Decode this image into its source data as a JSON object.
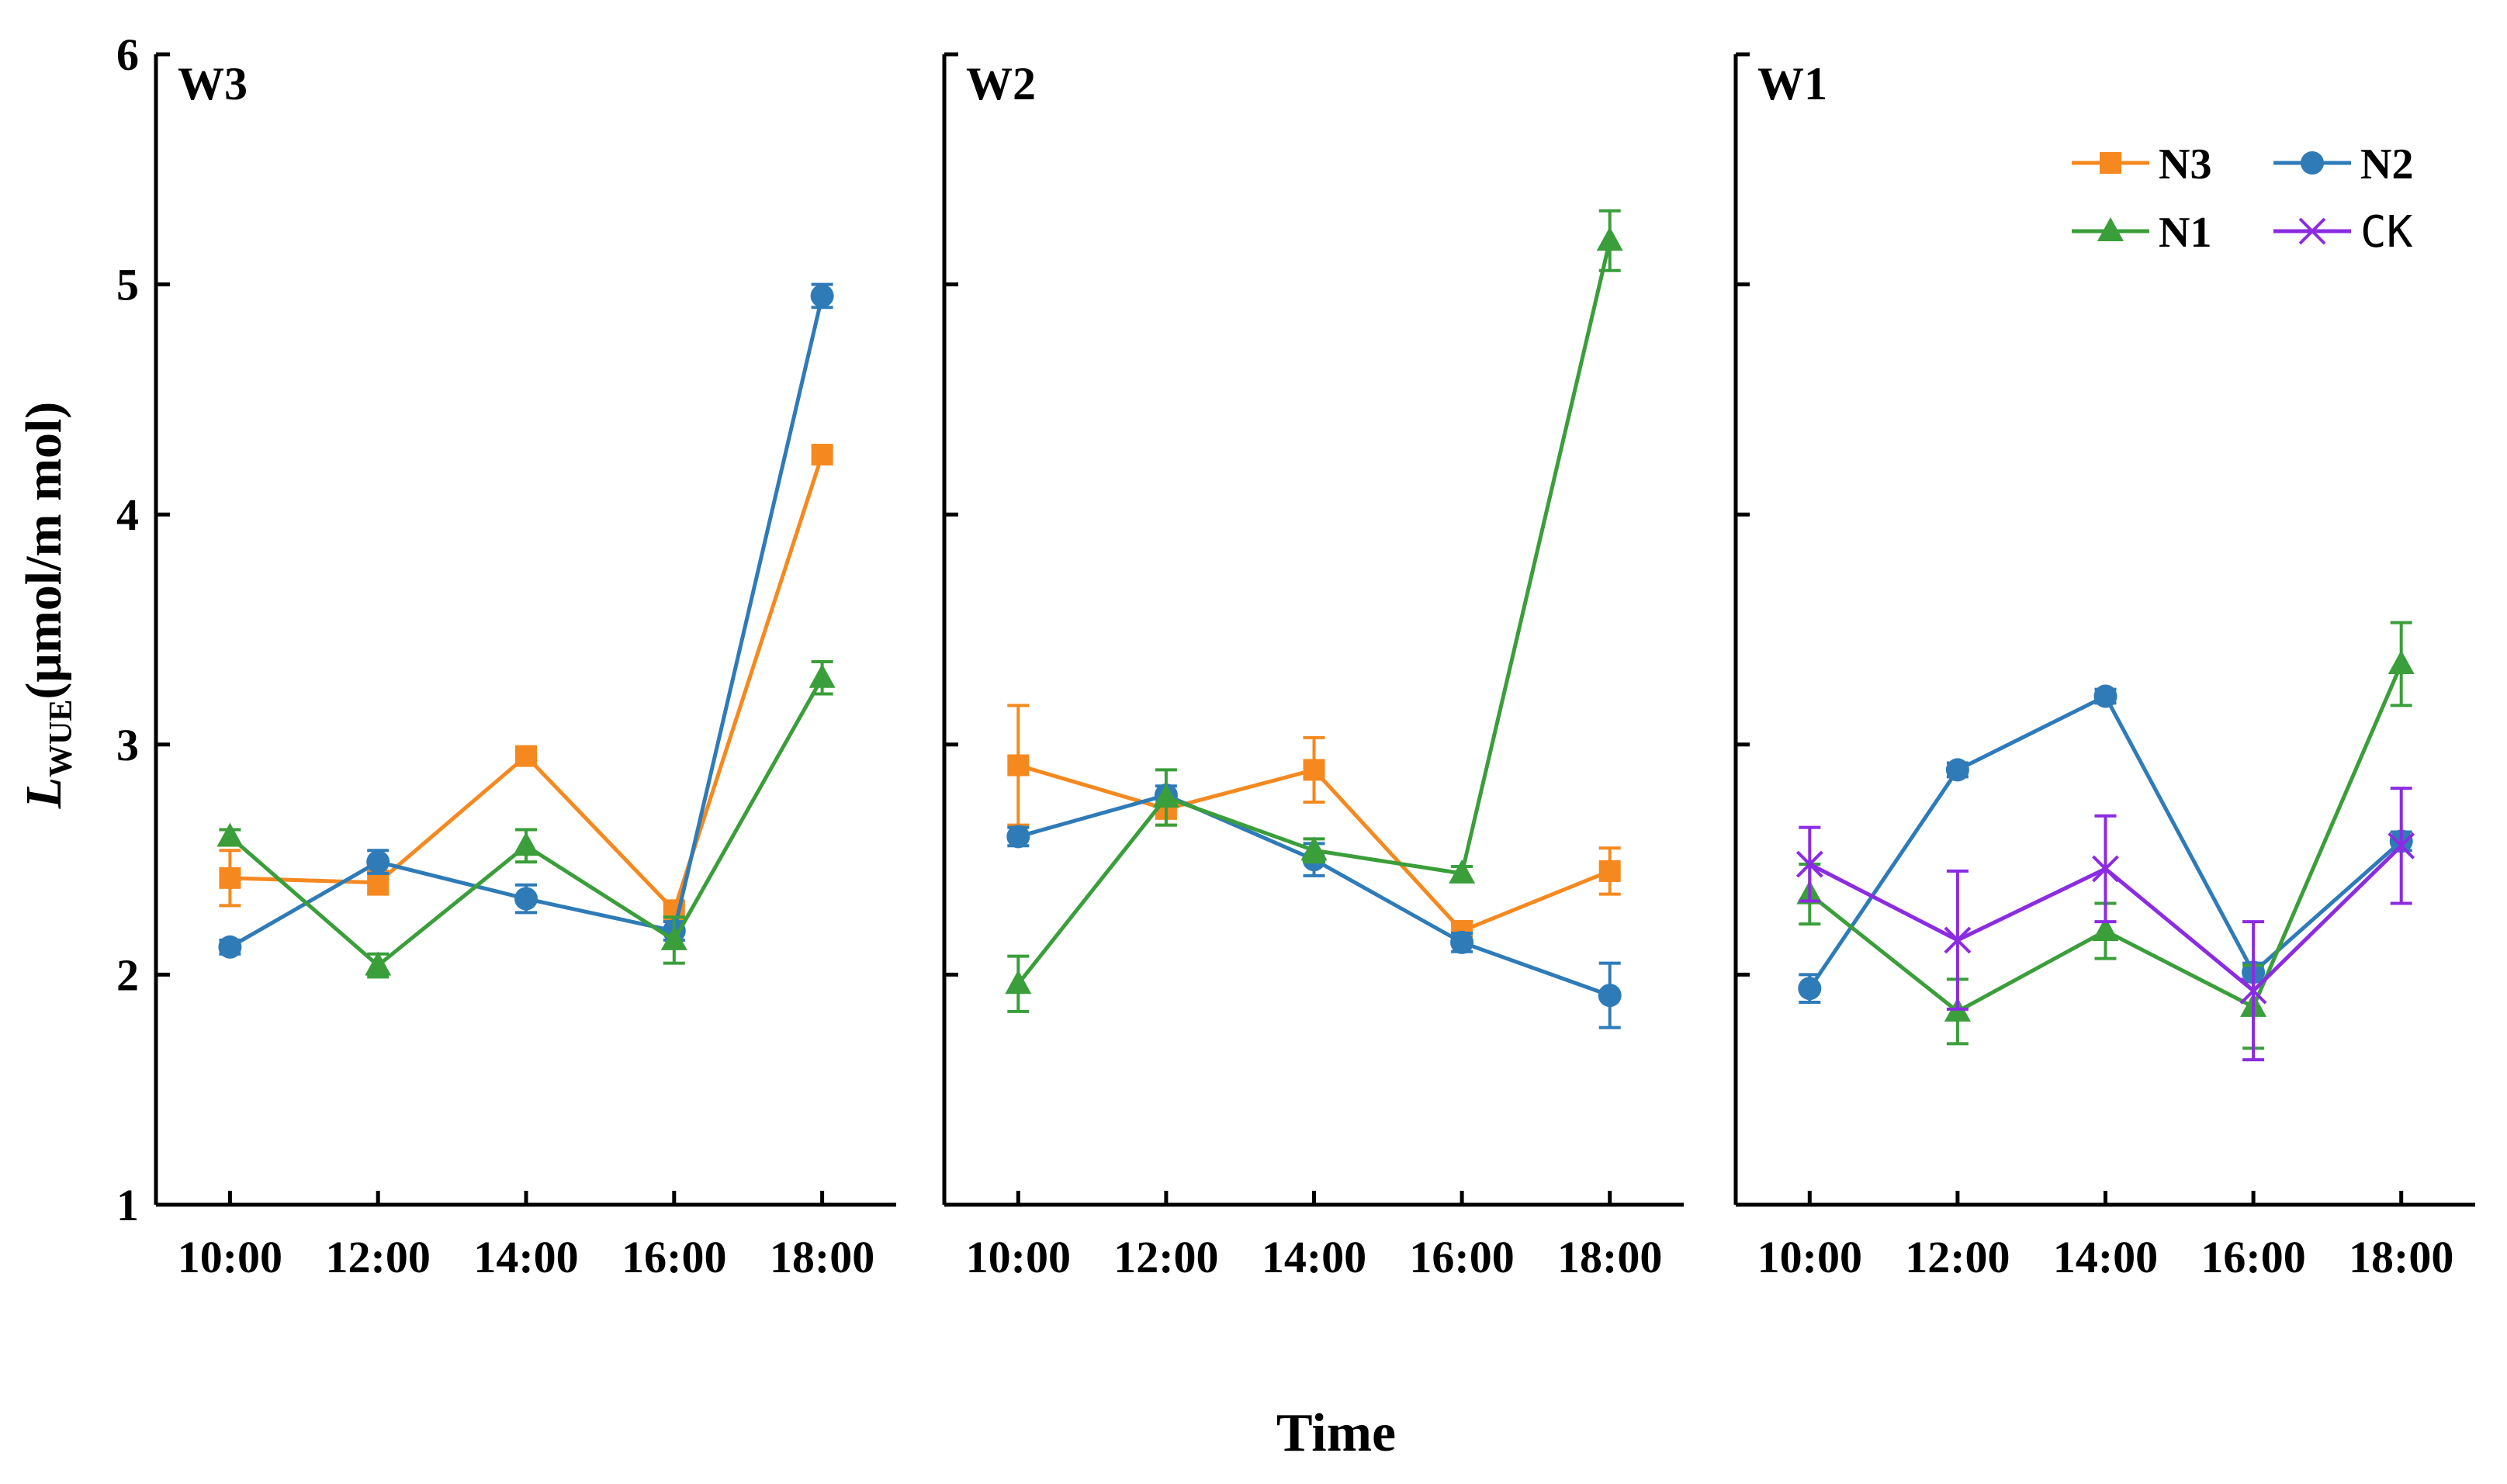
{
  "chart_data": {
    "type": "line",
    "xlabel": "Time",
    "ylabel": {
      "main": "L",
      "subscript": "WUE",
      "rest": "(μmol/m mol)"
    },
    "ylim": [
      1,
      6
    ],
    "yticks": [
      "1",
      "2",
      "3",
      "4",
      "5",
      "6"
    ],
    "categories": [
      "10:00",
      "12:00",
      "14:00",
      "16:00",
      "18:00"
    ],
    "legend": {
      "placement": "top-right of W1 panel",
      "entries": [
        {
          "name": "N3",
          "color": "#F5891F",
          "marker": "square"
        },
        {
          "name": "N2",
          "color": "#2E7BB8",
          "marker": "circle"
        },
        {
          "name": "N1",
          "color": "#3A9E3A",
          "marker": "triangle"
        },
        {
          "name": "CK",
          "color": "#8B2BE2",
          "marker": "x"
        }
      ]
    },
    "panels": [
      {
        "label": "W3",
        "series": [
          {
            "name": "N3",
            "values": [
              2.42,
              2.4,
              2.95,
              2.28,
              4.26
            ],
            "errors": [
              0.12,
              0.05,
              0.04,
              0.03,
              0.03
            ]
          },
          {
            "name": "N2",
            "values": [
              2.12,
              2.49,
              2.33,
              2.19,
              4.95
            ],
            "errors": [
              0.03,
              0.05,
              0.06,
              0.04,
              0.05
            ]
          },
          {
            "name": "N1",
            "values": [
              2.6,
              2.04,
              2.56,
              2.15,
              3.29
            ],
            "errors": [
              0.03,
              0.05,
              0.07,
              0.1,
              0.07
            ]
          }
        ]
      },
      {
        "label": "W2",
        "series": [
          {
            "name": "N3",
            "values": [
              2.91,
              2.72,
              2.89,
              2.19,
              2.45
            ],
            "errors": [
              0.26,
              0.07,
              0.14,
              0.04,
              0.1
            ]
          },
          {
            "name": "N2",
            "values": [
              2.6,
              2.78,
              2.5,
              2.14,
              1.91
            ],
            "errors": [
              0.04,
              0.04,
              0.07,
              0.04,
              0.14
            ]
          },
          {
            "name": "N1",
            "values": [
              1.96,
              2.77,
              2.54,
              2.44,
              5.19
            ],
            "errors": [
              0.12,
              0.12,
              0.05,
              0.03,
              0.13
            ]
          }
        ]
      },
      {
        "label": "W1",
        "series": [
          {
            "name": "N2",
            "values": [
              1.94,
              2.89,
              3.21,
              2.01,
              2.58
            ],
            "errors": [
              0.06,
              0.03,
              0.03,
              0.04,
              0.04
            ]
          },
          {
            "name": "N1",
            "values": [
              2.35,
              1.84,
              2.19,
              1.86,
              3.35
            ],
            "errors": [
              0.13,
              0.14,
              0.12,
              0.18,
              0.18
            ]
          },
          {
            "name": "CK",
            "values": [
              2.48,
              2.15,
              2.46,
              1.93,
              2.56
            ],
            "errors": [
              0.16,
              0.3,
              0.23,
              0.3,
              0.25
            ]
          }
        ]
      }
    ]
  }
}
